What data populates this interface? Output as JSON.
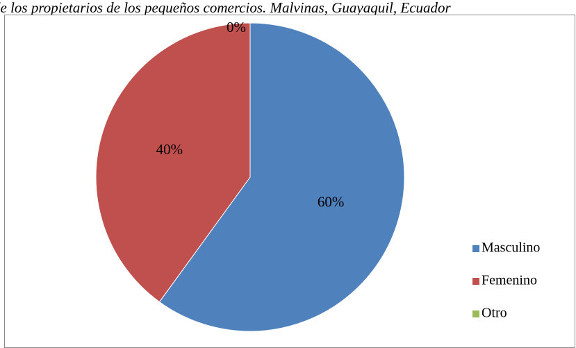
{
  "caption": "de los propietarios de los pequeños comercios. Malvinas, Guayaquil, Ecuador",
  "chart_data": {
    "type": "pie",
    "title": "",
    "categories": [
      "Masculino",
      "Femenino",
      "Otro"
    ],
    "values": [
      60,
      40,
      0
    ],
    "labels": [
      "60%",
      "40%",
      "0%"
    ],
    "colors": [
      "#4f81bd",
      "#c0504d",
      "#9bbb59"
    ],
    "legend_position": "right"
  }
}
